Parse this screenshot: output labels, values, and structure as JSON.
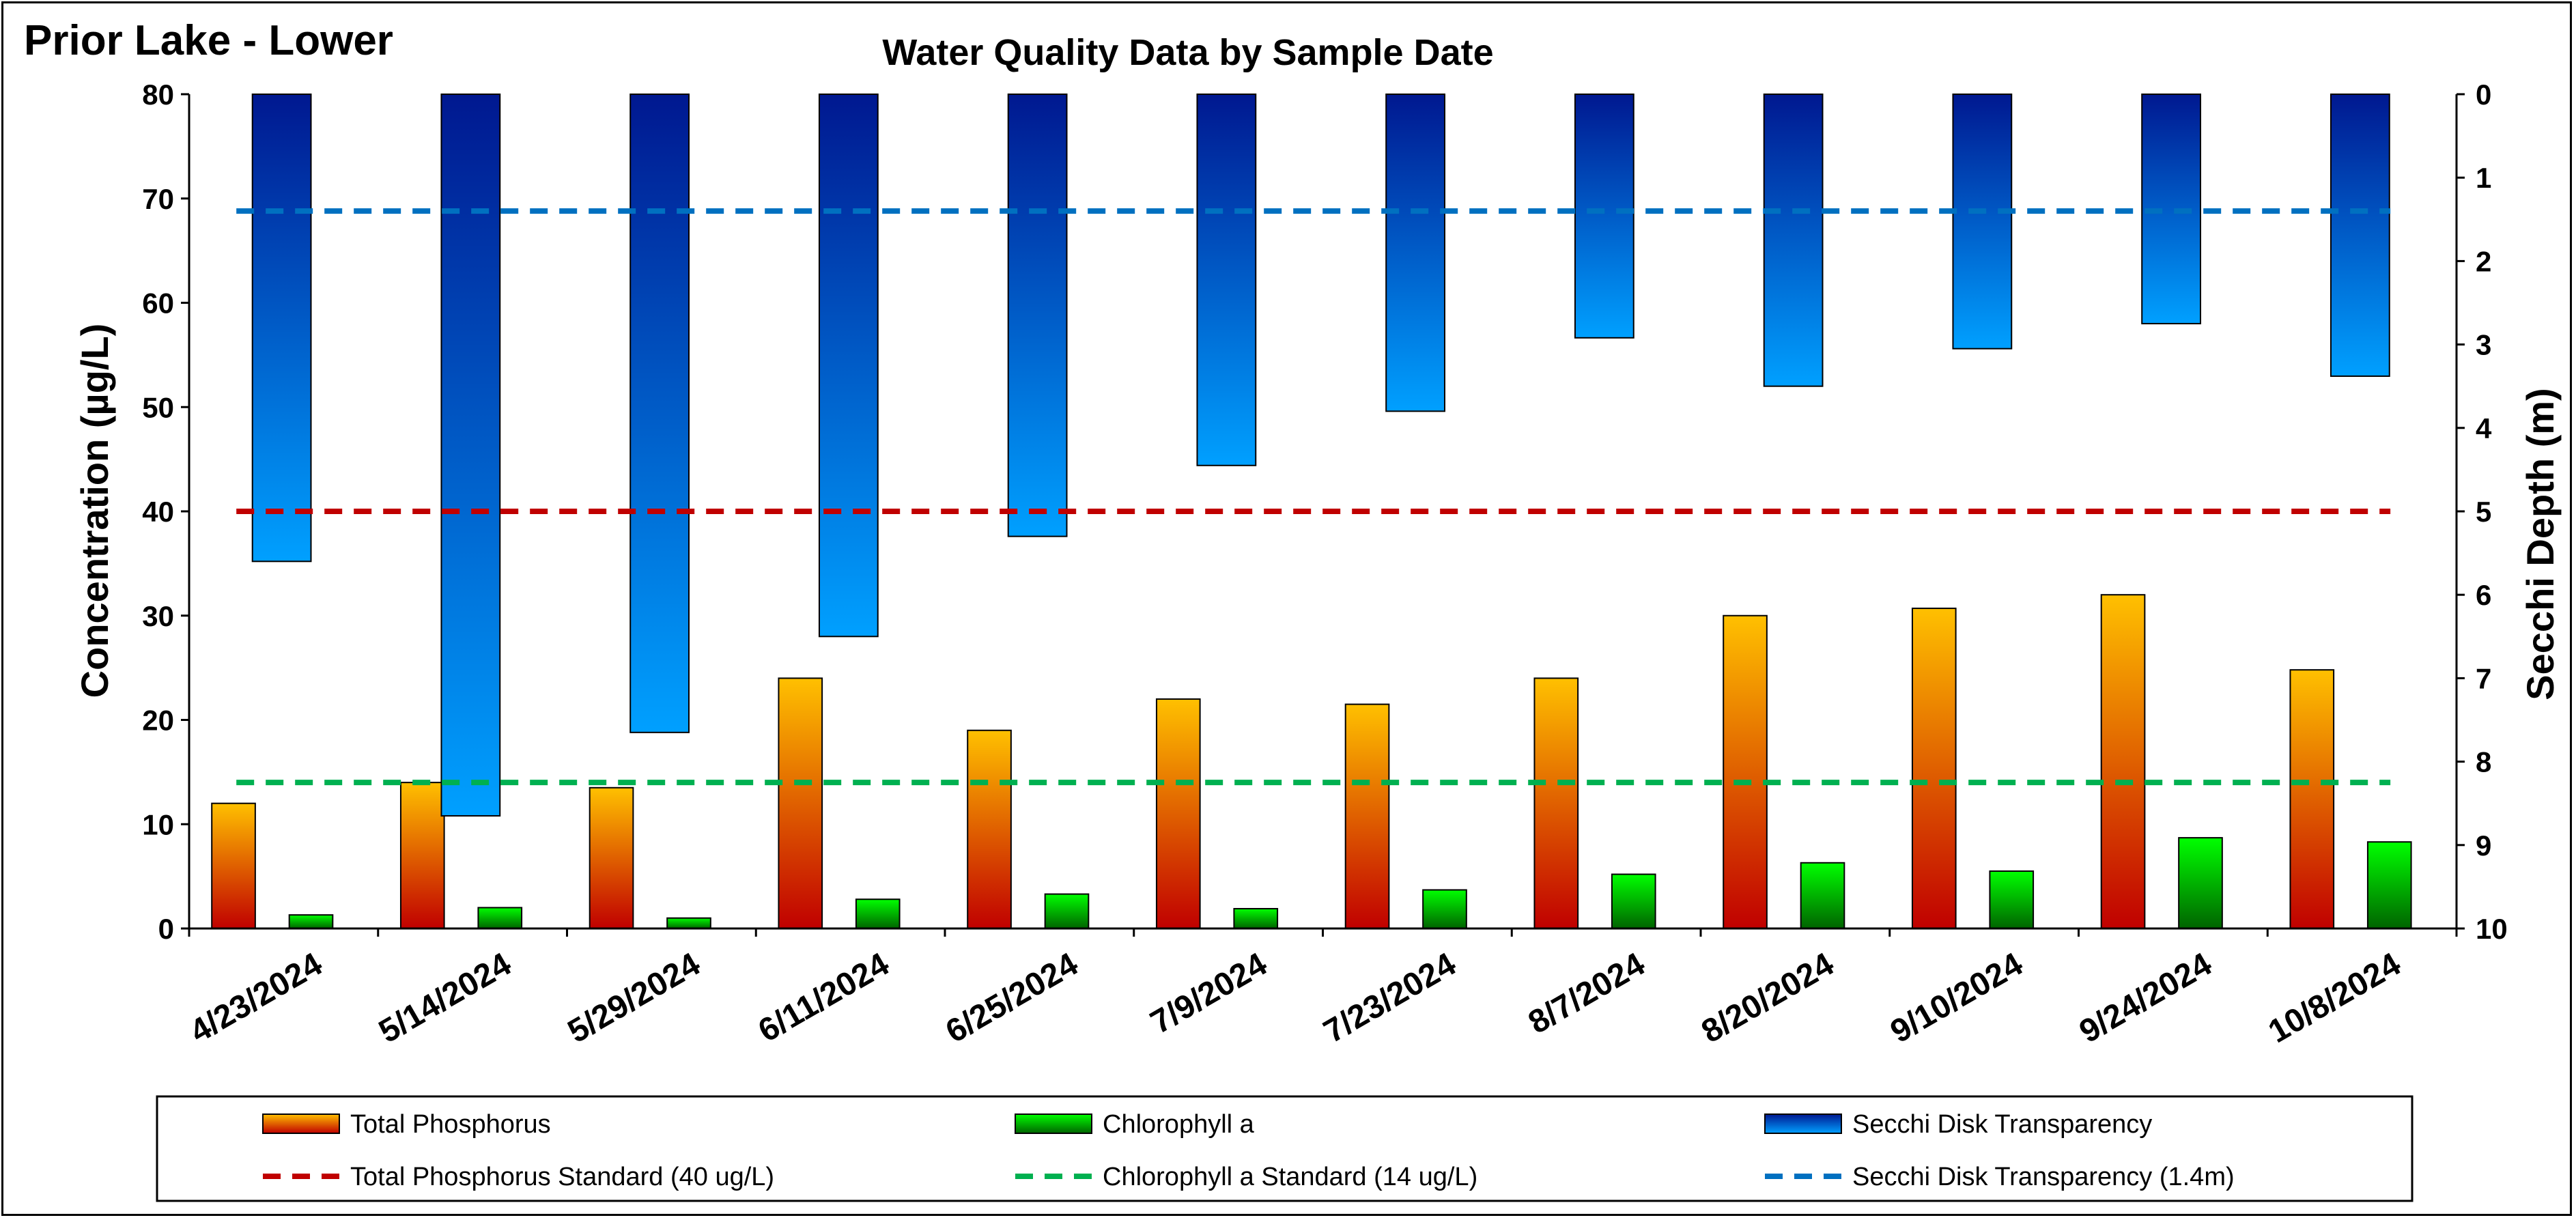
{
  "chart_data": {
    "type": "bar",
    "title": "Water Quality Data by Sample Date",
    "corner_title": "Prior Lake - Lower",
    "ylabel": "Concentration (µg/L)",
    "y2label": "Secchi Depth (m)",
    "ylim": [
      0,
      80
    ],
    "y2lim": [
      0,
      10
    ],
    "y2_inverted": true,
    "yticks": [
      0,
      10,
      20,
      30,
      40,
      50,
      60,
      70,
      80
    ],
    "y2ticks": [
      0,
      1,
      2,
      3,
      4,
      5,
      6,
      7,
      8,
      9,
      10
    ],
    "grid": false,
    "legend_position": "bottom",
    "categories": [
      "4/23/2024",
      "5/14/2024",
      "5/29/2024",
      "6/11/2024",
      "6/25/2024",
      "7/9/2024",
      "7/23/2024",
      "8/7/2024",
      "8/20/2024",
      "9/10/2024",
      "9/24/2024",
      "10/8/2024"
    ],
    "series": [
      {
        "name": "Total Phosphorus",
        "axis": "left",
        "color_top": "#FFC000",
        "color_bottom": "#C00000",
        "values": [
          12,
          14,
          13.5,
          24,
          19,
          22,
          21.5,
          24,
          30,
          30.7,
          32,
          24.8
        ]
      },
      {
        "name": "Chlorophyll a",
        "axis": "left",
        "color_top": "#00FF00",
        "color_bottom": "#006400",
        "values": [
          1.3,
          2,
          1,
          2.8,
          3.3,
          1.9,
          3.7,
          5.2,
          6.3,
          5.5,
          8.7,
          8.3
        ]
      },
      {
        "name": "Secchi Disk Transparency",
        "axis": "right",
        "color_top": "#001890",
        "color_bottom": "#00A0FF",
        "values": [
          5.6,
          8.65,
          7.65,
          6.5,
          5.3,
          4.45,
          3.8,
          2.92,
          3.5,
          3.05,
          2.75,
          3.38
        ]
      }
    ],
    "reference_lines": [
      {
        "name": "Total Phosphorus Standard (40 ug/L)",
        "axis": "left",
        "value": 40,
        "color": "#C00000"
      },
      {
        "name": "Chlorophyll a Standard (14 ug/L)",
        "axis": "left",
        "value": 14,
        "color": "#00B050"
      },
      {
        "name": "Secchi Disk Transparency (1.4m)",
        "axis": "right",
        "value": 1.4,
        "color": "#0070C0"
      }
    ]
  }
}
